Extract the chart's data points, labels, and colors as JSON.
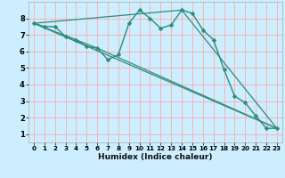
{
  "xlabel": "Humidex (Indice chaleur)",
  "background_color": "#cceeff",
  "grid_color": "#ffaaaa",
  "line_color": "#2e8b7a",
  "xlim": [
    -0.5,
    23.5
  ],
  "ylim": [
    0.5,
    9.0
  ],
  "yticks": [
    1,
    2,
    3,
    4,
    5,
    6,
    7,
    8
  ],
  "xticks": [
    0,
    1,
    2,
    3,
    4,
    5,
    6,
    7,
    8,
    9,
    10,
    11,
    12,
    13,
    14,
    15,
    16,
    17,
    18,
    19,
    20,
    21,
    22,
    23
  ],
  "main_series": {
    "x": [
      0,
      1,
      2,
      3,
      4,
      5,
      6,
      7,
      8,
      9,
      10,
      11,
      12,
      13,
      14,
      15,
      16,
      17,
      18,
      19,
      20,
      21,
      22,
      23
    ],
    "y": [
      7.7,
      7.5,
      7.5,
      6.9,
      6.7,
      6.3,
      6.2,
      5.5,
      5.8,
      7.7,
      8.5,
      8.0,
      7.4,
      7.6,
      8.5,
      8.3,
      7.3,
      6.7,
      4.9,
      3.3,
      2.9,
      2.1,
      1.35,
      1.35
    ]
  },
  "straight_lines": [
    {
      "x": [
        0,
        23
      ],
      "y": [
        7.7,
        1.35
      ]
    },
    {
      "x": [
        0,
        6,
        23
      ],
      "y": [
        7.7,
        6.2,
        1.35
      ]
    },
    {
      "x": [
        0,
        14,
        23
      ],
      "y": [
        7.7,
        8.5,
        1.35
      ]
    }
  ]
}
